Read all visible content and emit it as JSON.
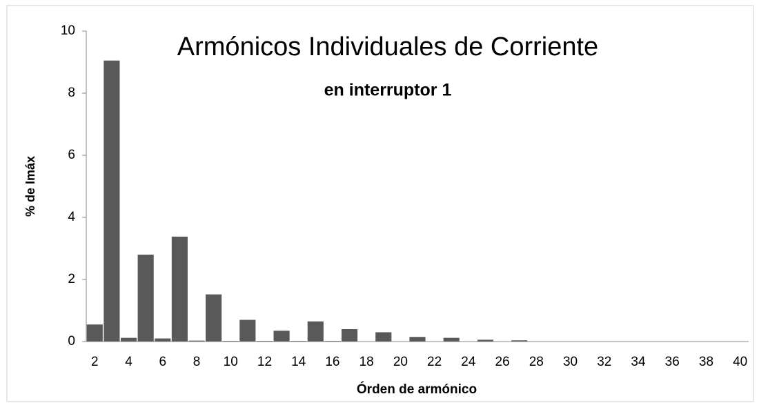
{
  "chart_data": {
    "type": "bar",
    "title": "Armónicos Individuales de Corriente",
    "subtitle": "en interruptor 1",
    "x_label": "Órden de armónico",
    "y_label": "% de Imáx",
    "categories": [
      "2",
      null,
      "4",
      null,
      "6",
      null,
      "8",
      null,
      "10",
      null,
      "12",
      null,
      "14",
      null,
      "16",
      null,
      "18",
      null,
      "20",
      null,
      "22",
      null,
      "24",
      null,
      "26",
      null,
      "28",
      null,
      "30",
      null,
      "32",
      null,
      "34",
      null,
      "36",
      null,
      "38",
      null,
      "40"
    ],
    "values": [
      0.55,
      9.05,
      0.12,
      2.8,
      0.1,
      3.38,
      0.03,
      1.52,
      0.02,
      0.7,
      0.02,
      0.35,
      0.02,
      0.65,
      0.02,
      0.4,
      0.01,
      0.3,
      0.01,
      0.15,
      0.01,
      0.12,
      0,
      0.06,
      0,
      0.04,
      0,
      0,
      0,
      0,
      0,
      0,
      0,
      0,
      0,
      0,
      0,
      0,
      0
    ],
    "color": "#595959",
    "ylim": [
      0,
      10
    ],
    "yticks": [
      0,
      2,
      4,
      6,
      8,
      10
    ],
    "grid": false
  }
}
